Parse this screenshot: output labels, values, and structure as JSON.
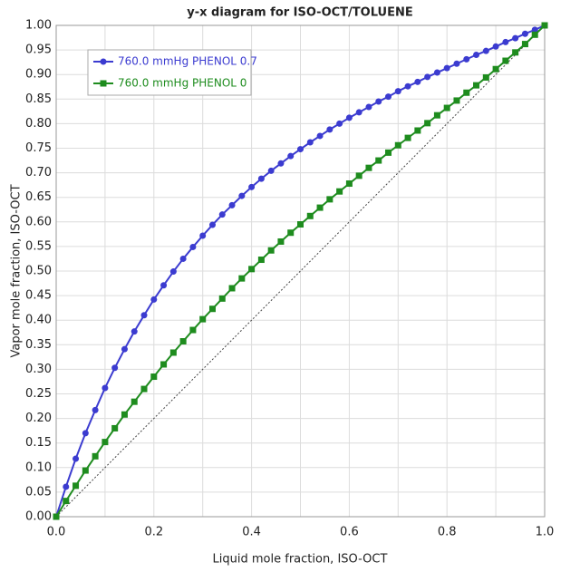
{
  "chart_data": {
    "type": "line",
    "title": "y-x diagram for ISO-OCT/TOLUENE",
    "x_label": "Liquid mole fraction, ISO-OCT",
    "y_label": "Vapor mole fraction, ISO-OCT",
    "x": [
      0,
      0.02,
      0.04,
      0.06,
      0.08,
      0.1,
      0.12,
      0.14,
      0.16,
      0.18,
      0.2,
      0.22,
      0.24,
      0.26,
      0.28,
      0.3,
      0.32,
      0.34,
      0.36,
      0.38,
      0.4,
      0.42,
      0.44,
      0.46,
      0.48,
      0.5,
      0.52,
      0.54,
      0.56,
      0.58,
      0.6,
      0.62,
      0.64,
      0.66,
      0.68,
      0.7,
      0.72,
      0.74,
      0.76,
      0.78,
      0.8,
      0.82,
      0.84,
      0.86,
      0.88,
      0.9,
      0.92,
      0.94,
      0.96,
      0.98,
      1
    ],
    "series": [
      {
        "name": "760.0 mmHg PHENOL 0.7",
        "color": "#3b3bd0",
        "marker": "circle",
        "values": [
          0,
          0.061,
          0.118,
          0.17,
          0.217,
          0.262,
          0.303,
          0.341,
          0.377,
          0.41,
          0.442,
          0.471,
          0.499,
          0.525,
          0.549,
          0.572,
          0.594,
          0.615,
          0.634,
          0.653,
          0.671,
          0.688,
          0.704,
          0.719,
          0.734,
          0.748,
          0.762,
          0.775,
          0.788,
          0.8,
          0.812,
          0.823,
          0.834,
          0.845,
          0.855,
          0.866,
          0.876,
          0.885,
          0.895,
          0.904,
          0.913,
          0.922,
          0.931,
          0.94,
          0.948,
          0.957,
          0.966,
          0.974,
          0.983,
          0.991,
          1
        ]
      },
      {
        "name": "760.0 mmHg PHENOL 0",
        "color": "#1e8c1e",
        "marker": "square",
        "values": [
          0,
          0.032,
          0.063,
          0.094,
          0.123,
          0.152,
          0.18,
          0.208,
          0.234,
          0.26,
          0.285,
          0.31,
          0.334,
          0.357,
          0.38,
          0.402,
          0.423,
          0.444,
          0.465,
          0.485,
          0.504,
          0.523,
          0.542,
          0.56,
          0.578,
          0.595,
          0.612,
          0.629,
          0.646,
          0.662,
          0.678,
          0.694,
          0.71,
          0.725,
          0.741,
          0.756,
          0.771,
          0.786,
          0.801,
          0.817,
          0.832,
          0.847,
          0.863,
          0.878,
          0.894,
          0.911,
          0.928,
          0.945,
          0.962,
          0.981,
          1
        ]
      }
    ],
    "xlim": [
      0,
      1
    ],
    "ylim": [
      0,
      1
    ],
    "xticks": [
      {
        "value": 0,
        "label": "0.0"
      },
      0.2,
      0.4,
      0.6,
      0.8,
      {
        "value": 1,
        "label": "1.0"
      }
    ],
    "xminor_ticks": [
      0.1,
      0.3,
      0.5,
      0.7,
      0.9
    ],
    "yticks": [
      {
        "value": 0,
        "label": "0.00"
      },
      {
        "value": 0.05,
        "label": "0.05"
      },
      {
        "value": 0.1,
        "label": "0.10"
      },
      {
        "value": 0.15,
        "label": "0.15"
      },
      {
        "value": 0.2,
        "label": "0.20"
      },
      {
        "value": 0.25,
        "label": "0.25"
      },
      {
        "value": 0.3,
        "label": "0.30"
      },
      {
        "value": 0.35,
        "label": "0.35"
      },
      {
        "value": 0.4,
        "label": "0.40"
      },
      {
        "value": 0.45,
        "label": "0.45"
      },
      {
        "value": 0.5,
        "label": "0.50"
      },
      {
        "value": 0.55,
        "label": "0.55"
      },
      {
        "value": 0.6,
        "label": "0.60"
      },
      {
        "value": 0.65,
        "label": "0.65"
      },
      {
        "value": 0.7,
        "label": "0.70"
      },
      {
        "value": 0.75,
        "label": "0.75"
      },
      {
        "value": 0.8,
        "label": "0.80"
      },
      {
        "value": 0.85,
        "label": "0.85"
      },
      {
        "value": 0.9,
        "label": "0.90"
      },
      {
        "value": 0.95,
        "label": "0.95"
      },
      {
        "value": 1,
        "label": "1.00"
      }
    ],
    "grid": true,
    "diagonal": true,
    "legend": "top-left"
  }
}
